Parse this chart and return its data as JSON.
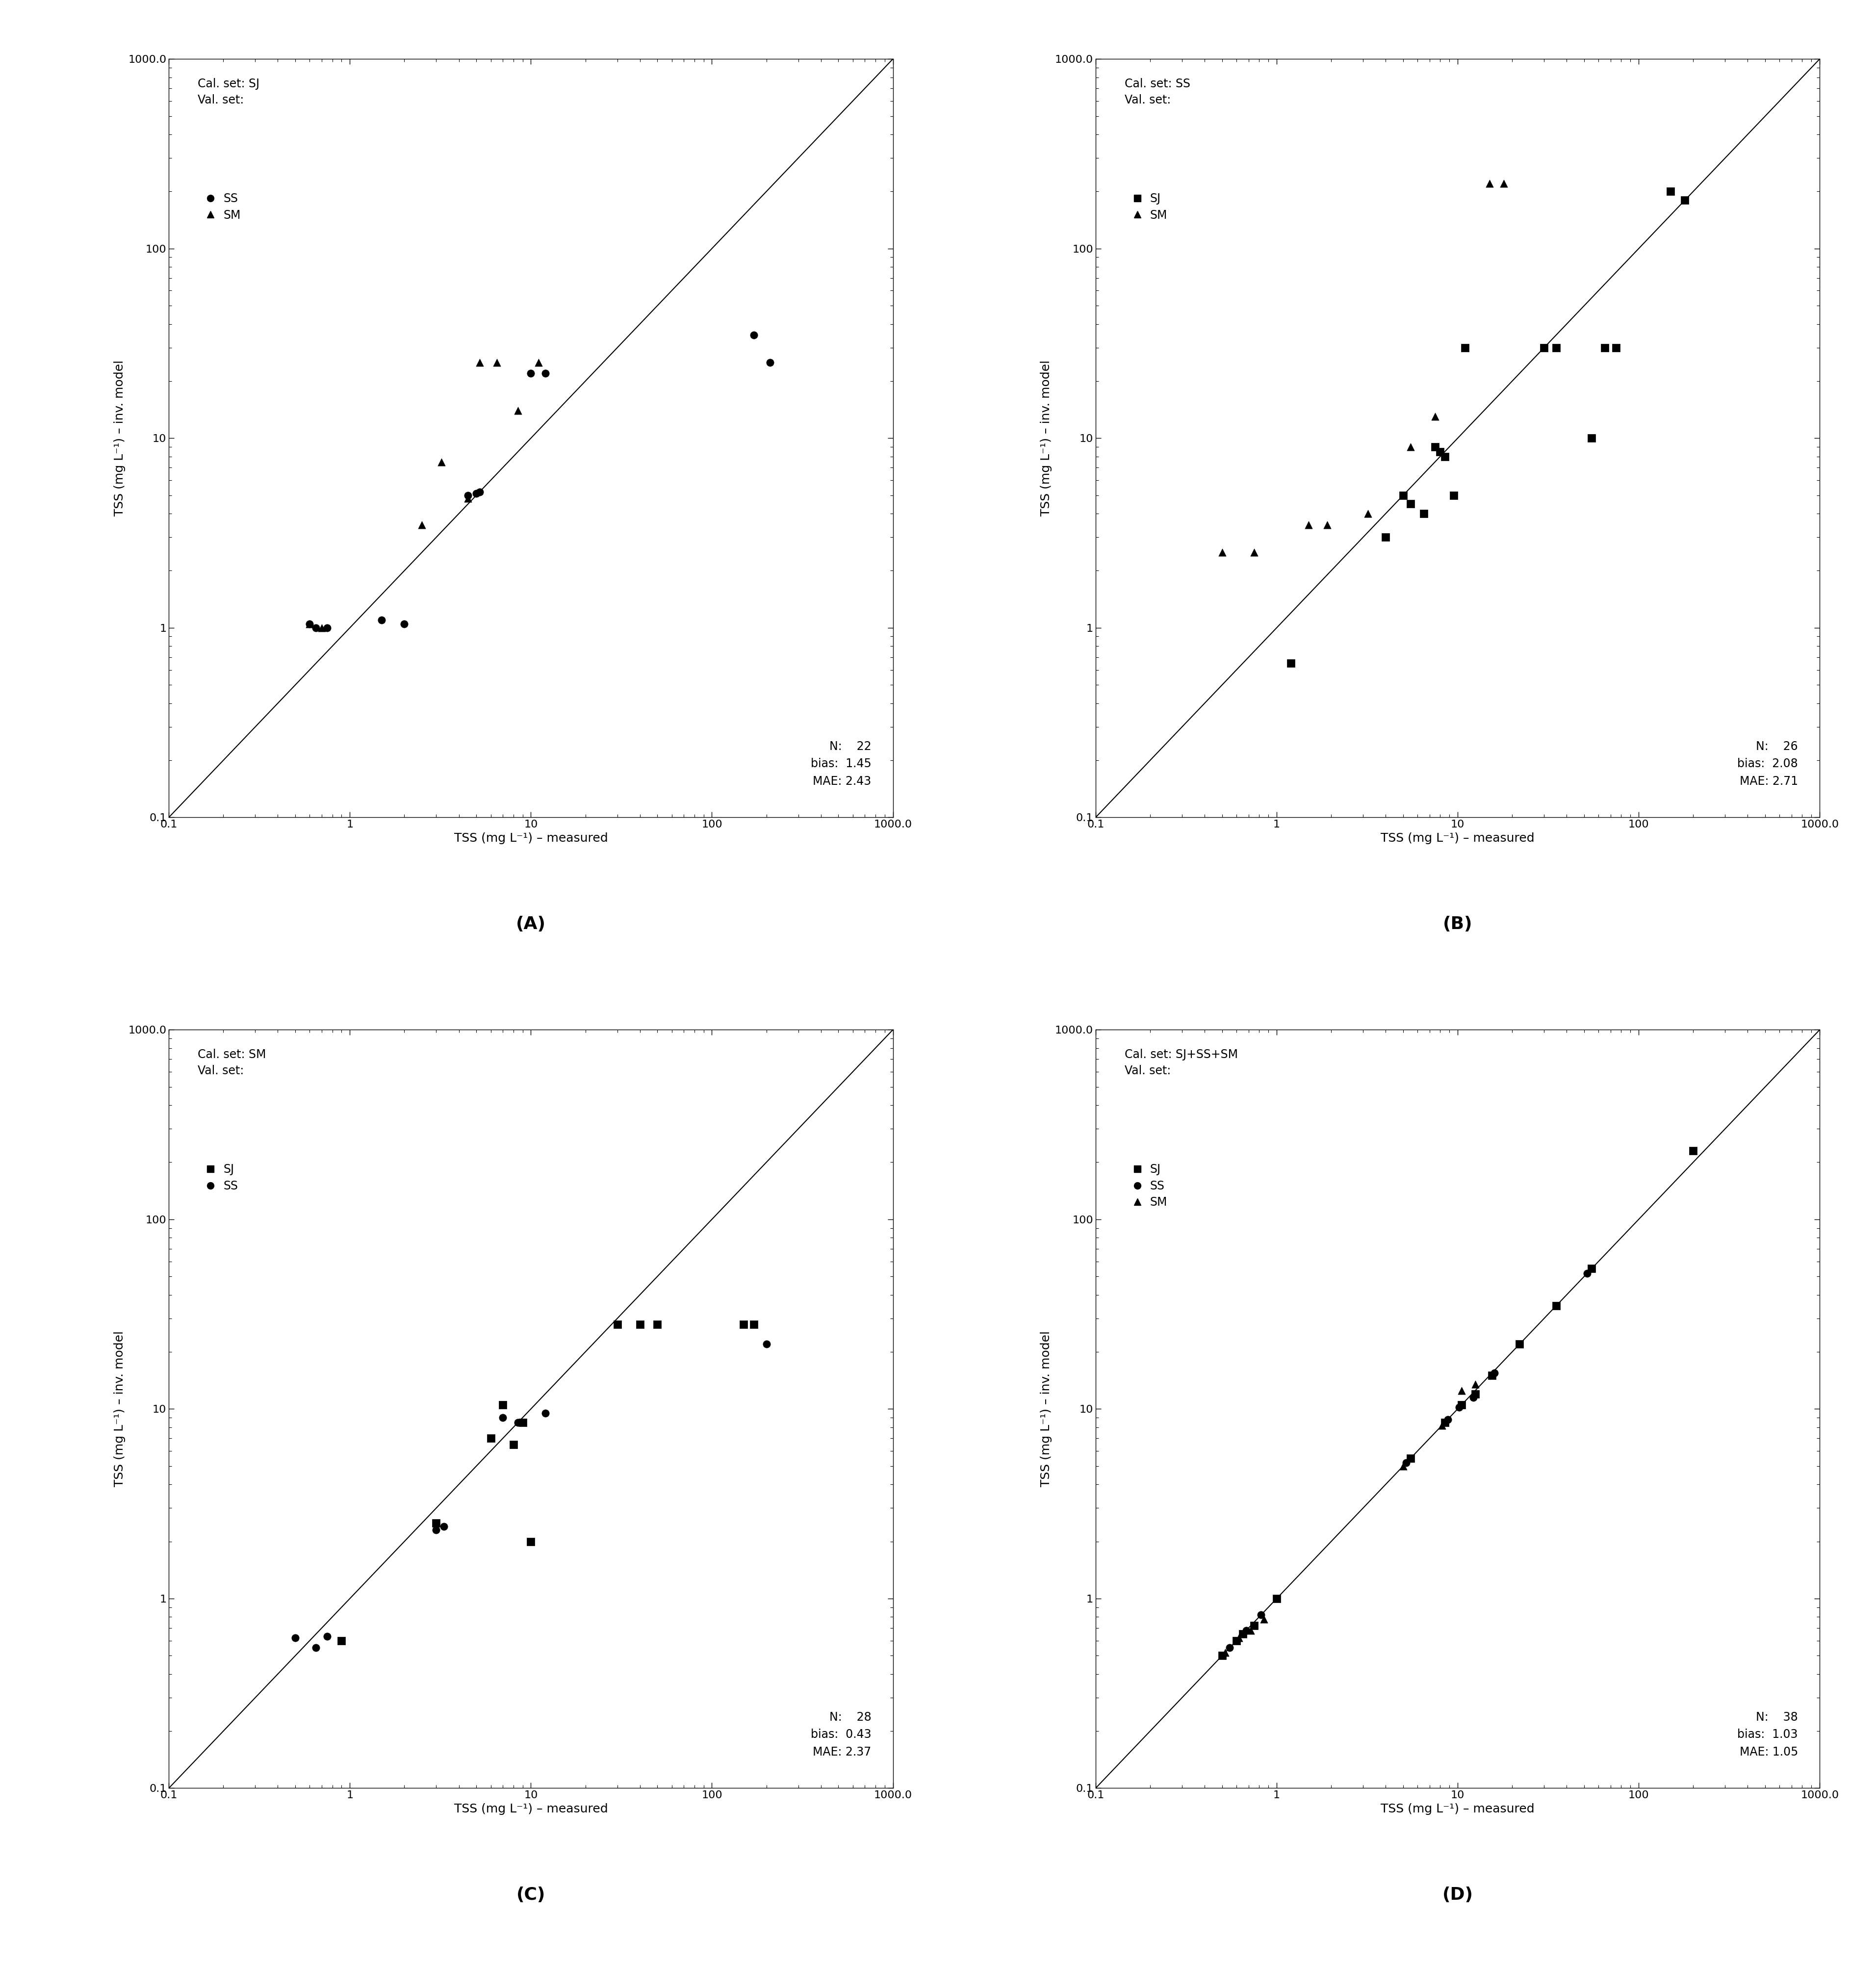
{
  "panels": [
    {
      "label": "A",
      "cal_set": "SJ",
      "val_set_label": "Val. set:",
      "N": 22,
      "bias": 1.45,
      "MAE": 2.43,
      "series": [
        {
          "name": "SS",
          "marker": "o",
          "x": [
            0.6,
            0.65,
            0.75,
            1.5,
            2.0,
            4.5,
            5.0,
            5.2,
            10.0,
            12.0,
            170.0,
            210.0
          ],
          "y": [
            1.05,
            1.0,
            1.0,
            1.1,
            1.05,
            5.0,
            5.1,
            5.2,
            22.0,
            22.0,
            35.0,
            25.0
          ]
        },
        {
          "name": "SM",
          "marker": "^",
          "x": [
            0.6,
            0.7,
            2.5,
            3.2,
            4.5,
            5.2,
            6.5,
            8.5,
            11.0
          ],
          "y": [
            1.05,
            1.0,
            3.5,
            7.5,
            4.8,
            25.0,
            25.0,
            14.0,
            25.0
          ]
        }
      ]
    },
    {
      "label": "B",
      "cal_set": "SS",
      "val_set_label": "Val. set:",
      "N": 26,
      "bias": 2.08,
      "MAE": 2.71,
      "series": [
        {
          "name": "SJ",
          "marker": "s",
          "x": [
            1.2,
            4.0,
            5.0,
            5.5,
            6.5,
            7.5,
            8.0,
            8.5,
            9.5,
            11.0,
            30.0,
            35.0,
            55.0,
            65.0,
            75.0,
            150.0,
            180.0
          ],
          "y": [
            0.65,
            3.0,
            5.0,
            4.5,
            4.0,
            9.0,
            8.5,
            8.0,
            5.0,
            30.0,
            30.0,
            30.0,
            10.0,
            30.0,
            30.0,
            200.0,
            180.0
          ]
        },
        {
          "name": "SM",
          "marker": "^",
          "x": [
            0.5,
            0.75,
            1.5,
            1.9,
            3.2,
            5.5,
            7.5,
            15.0,
            18.0
          ],
          "y": [
            2.5,
            2.5,
            3.5,
            3.5,
            4.0,
            9.0,
            13.0,
            220.0,
            220.0
          ]
        }
      ]
    },
    {
      "label": "C",
      "cal_set": "SM",
      "val_set_label": "Val. set:",
      "N": 28,
      "bias": 0.43,
      "MAE": 2.37,
      "series": [
        {
          "name": "SJ",
          "marker": "s",
          "x": [
            0.9,
            3.0,
            6.0,
            7.0,
            8.0,
            9.0,
            10.0,
            30.0,
            40.0,
            50.0,
            150.0,
            170.0
          ],
          "y": [
            0.6,
            2.5,
            7.0,
            10.5,
            6.5,
            8.5,
            2.0,
            28.0,
            28.0,
            28.0,
            28.0,
            28.0
          ]
        },
        {
          "name": "SS",
          "marker": "o",
          "x": [
            0.5,
            0.65,
            0.75,
            3.0,
            3.3,
            7.0,
            8.5,
            12.0,
            200.0
          ],
          "y": [
            0.62,
            0.55,
            0.63,
            2.3,
            2.4,
            9.0,
            8.5,
            9.5,
            22.0
          ]
        }
      ]
    },
    {
      "label": "D",
      "cal_set": "SJ+SS+SM",
      "val_set_label": "Val. set:",
      "N": 38,
      "bias": 1.03,
      "MAE": 1.05,
      "series": [
        {
          "name": "SJ",
          "marker": "s",
          "x": [
            0.5,
            0.6,
            0.65,
            0.75,
            1.0,
            5.5,
            8.5,
            10.5,
            12.5,
            15.5,
            22.0,
            35.0,
            55.0,
            200.0
          ],
          "y": [
            0.5,
            0.6,
            0.65,
            0.72,
            1.0,
            5.5,
            8.5,
            10.5,
            12.0,
            15.0,
            22.0,
            35.0,
            55.0,
            230.0
          ]
        },
        {
          "name": "SS",
          "marker": "o",
          "x": [
            0.55,
            0.68,
            0.82,
            5.2,
            8.8,
            10.2,
            12.2,
            16.0,
            52.0
          ],
          "y": [
            0.55,
            0.68,
            0.82,
            5.2,
            8.8,
            10.2,
            11.5,
            15.5,
            52.0
          ]
        },
        {
          "name": "SM",
          "marker": "^",
          "x": [
            0.52,
            0.62,
            0.72,
            0.85,
            5.0,
            8.2,
            10.5,
            12.5
          ],
          "y": [
            0.52,
            0.62,
            0.68,
            0.78,
            5.0,
            8.2,
            12.5,
            13.5
          ]
        }
      ]
    }
  ],
  "xlim": [
    0.1,
    1000.0
  ],
  "ylim": [
    0.1,
    1000.0
  ],
  "xlabel": "TSS (mg L⁻¹) – measured",
  "ylabel": "TSS (mg L⁻¹) – inv. model",
  "marker_size": 120,
  "marker_color": "#000000",
  "background_color": "#ffffff",
  "font_size": 18,
  "tick_font_size": 16,
  "panel_label_font_size": 26,
  "stats_font_size": 17,
  "legend_font_size": 17
}
